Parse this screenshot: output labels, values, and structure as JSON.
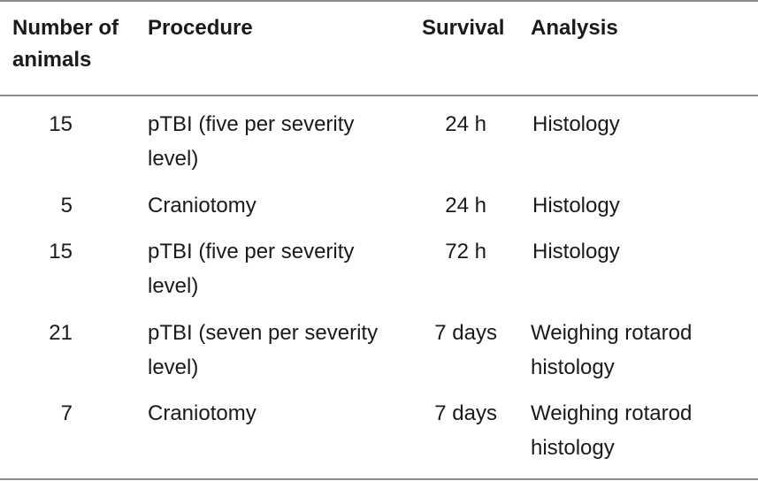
{
  "table": {
    "headers": {
      "number": "Number of animals",
      "procedure": "Procedure",
      "survival": "Survival",
      "analysis": "Analysis"
    },
    "rows": [
      {
        "number": "15",
        "procedure": "pTBI (five per severity level)",
        "survival": "24 h",
        "analysis": "Histology"
      },
      {
        "number": "5",
        "procedure": "Craniotomy",
        "survival": "24 h",
        "analysis": "Histology"
      },
      {
        "number": "15",
        "procedure": "pTBI (five per severity level)",
        "survival": "72 h",
        "analysis": "Histology"
      },
      {
        "number": "21",
        "procedure": "pTBI (seven per severity level)",
        "survival": "7 days",
        "analysis": "Weighing rotarod histology"
      },
      {
        "number": "7",
        "procedure": "Craniotomy",
        "survival": "7 days",
        "analysis": "Weighing rotarod histology"
      }
    ]
  }
}
